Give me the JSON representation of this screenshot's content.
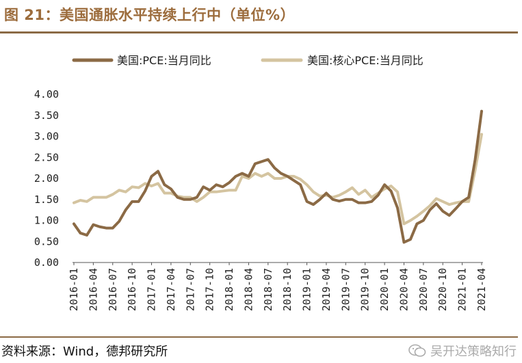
{
  "title": "图 21：美国通胀水平持续上行中（单位%）",
  "source": "资料来源：Wind，德邦研究所",
  "watermark": "吴开达策略知行",
  "colors": {
    "series1": "#8b6a45",
    "series2": "#d4c4a0",
    "title": "#9c6c3c",
    "rule": "#8b6a45"
  },
  "chart_data": {
    "type": "line",
    "title": "",
    "xlabel": "",
    "ylabel": "",
    "ylim": [
      0,
      4
    ],
    "yticks": [
      "0.00",
      "0.50",
      "1.00",
      "1.50",
      "2.00",
      "2.50",
      "3.00",
      "3.50",
      "4.00"
    ],
    "grid": false,
    "legend": "top",
    "x": [
      "2016-01",
      "2016-02",
      "2016-03",
      "2016-04",
      "2016-05",
      "2016-06",
      "2016-07",
      "2016-08",
      "2016-09",
      "2016-10",
      "2016-11",
      "2016-12",
      "2017-01",
      "2017-02",
      "2017-03",
      "2017-04",
      "2017-05",
      "2017-06",
      "2017-07",
      "2017-08",
      "2017-09",
      "2017-10",
      "2017-11",
      "2017-12",
      "2018-01",
      "2018-02",
      "2018-03",
      "2018-04",
      "2018-05",
      "2018-06",
      "2018-07",
      "2018-08",
      "2018-09",
      "2018-10",
      "2018-11",
      "2018-12",
      "2019-01",
      "2019-02",
      "2019-03",
      "2019-04",
      "2019-05",
      "2019-06",
      "2019-07",
      "2019-08",
      "2019-09",
      "2019-10",
      "2019-11",
      "2019-12",
      "2020-01",
      "2020-02",
      "2020-03",
      "2020-04",
      "2020-05",
      "2020-06",
      "2020-07",
      "2020-08",
      "2020-09",
      "2020-10",
      "2020-11",
      "2020-12",
      "2021-01",
      "2021-02",
      "2021-03",
      "2021-04"
    ],
    "xticks": [
      "2016-01",
      "2016-04",
      "2016-07",
      "2016-10",
      "2017-01",
      "2017-04",
      "2017-07",
      "2017-10",
      "2018-01",
      "2018-04",
      "2018-07",
      "2018-10",
      "2019-01",
      "2019-04",
      "2019-07",
      "2019-10",
      "2020-01",
      "2020-04",
      "2020-07",
      "2020-10",
      "2021-01",
      "2021-04"
    ],
    "series": [
      {
        "name": "美国:PCE:当月同比",
        "values": [
          0.92,
          0.7,
          0.65,
          0.9,
          0.85,
          0.82,
          0.82,
          0.98,
          1.25,
          1.45,
          1.45,
          1.7,
          2.05,
          2.17,
          1.85,
          1.75,
          1.55,
          1.5,
          1.5,
          1.55,
          1.8,
          1.72,
          1.85,
          1.8,
          1.9,
          2.05,
          2.12,
          2.05,
          2.35,
          2.4,
          2.45,
          2.25,
          2.12,
          2.05,
          1.95,
          1.85,
          1.45,
          1.38,
          1.5,
          1.65,
          1.5,
          1.46,
          1.5,
          1.5,
          1.42,
          1.42,
          1.45,
          1.6,
          1.85,
          1.7,
          1.3,
          0.48,
          0.55,
          0.92,
          1.0,
          1.25,
          1.4,
          1.22,
          1.12,
          1.28,
          1.45,
          1.55,
          2.45,
          3.6
        ]
      },
      {
        "name": "美国:核心PCE:当月同比",
        "values": [
          1.42,
          1.48,
          1.45,
          1.55,
          1.55,
          1.55,
          1.62,
          1.72,
          1.68,
          1.8,
          1.78,
          1.88,
          1.82,
          1.88,
          1.65,
          1.65,
          1.58,
          1.55,
          1.55,
          1.45,
          1.55,
          1.68,
          1.68,
          1.7,
          1.72,
          1.72,
          2.05,
          2.0,
          2.12,
          2.05,
          2.12,
          2.0,
          2.0,
          2.05,
          2.05,
          1.98,
          1.85,
          1.68,
          1.58,
          1.6,
          1.55,
          1.6,
          1.68,
          1.78,
          1.62,
          1.72,
          1.55,
          1.65,
          1.75,
          1.82,
          1.68,
          0.92,
          1.0,
          1.1,
          1.22,
          1.35,
          1.52,
          1.45,
          1.38,
          1.42,
          1.45,
          1.45,
          2.2,
          3.05
        ]
      }
    ]
  }
}
